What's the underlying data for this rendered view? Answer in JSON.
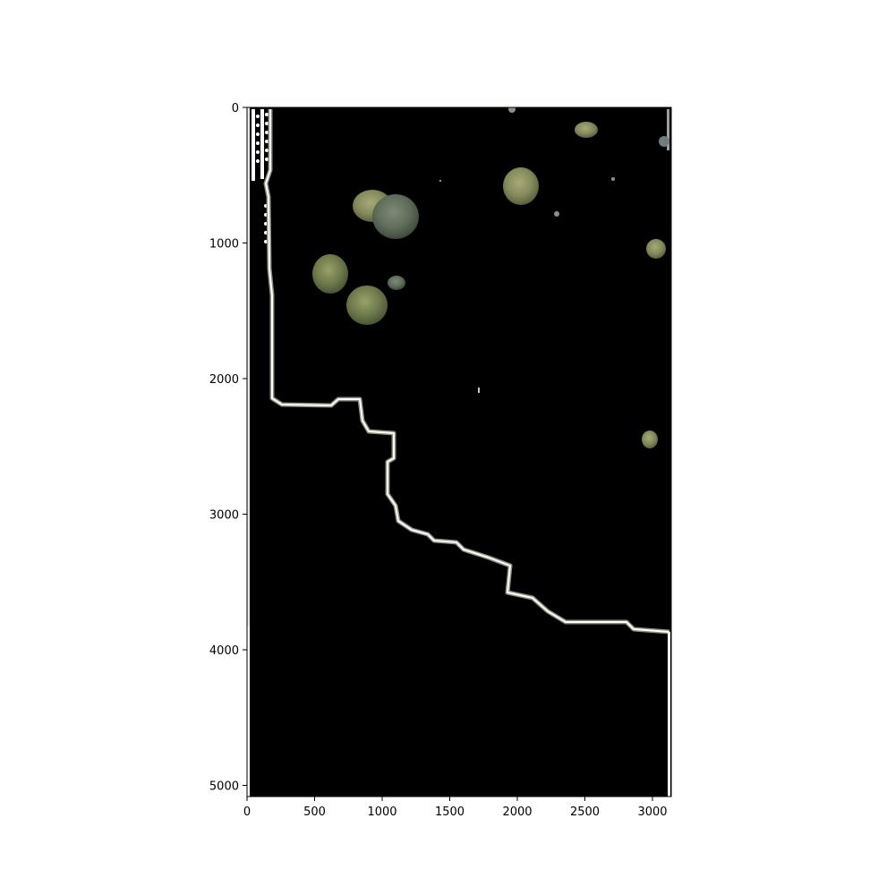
{
  "image": {
    "description_free": true,
    "x_ticks": [
      "0",
      "500",
      "1000",
      "1500",
      "2000",
      "2500",
      "3000"
    ],
    "y_ticks": [
      "0",
      "1000",
      "2000",
      "3000",
      "4000",
      "5000"
    ],
    "x_range": [
      0,
      3140
    ],
    "y_range": [
      0,
      5090
    ],
    "colors": {
      "background": "#000000",
      "frame": "#000000",
      "tree_dark": "#56653f",
      "tree_light": "#8c9660",
      "edge_white": "#ffffff",
      "edge_grey": "#9a9a8a"
    }
  }
}
